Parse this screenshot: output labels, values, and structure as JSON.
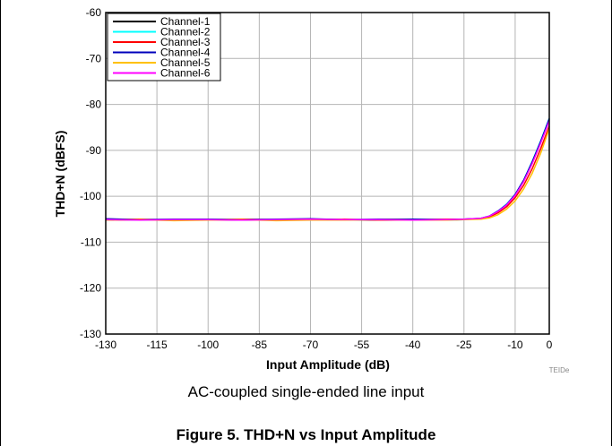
{
  "chart_data": {
    "type": "line",
    "title": "",
    "xlabel": "Input Amplitude (dB)",
    "ylabel": "THD+N (dBFS)",
    "xlim": [
      -130,
      0
    ],
    "ylim": [
      -130,
      -60
    ],
    "x_ticks": [
      "-130",
      "-115",
      "-100",
      "-85",
      "-70",
      "-55",
      "-40",
      "-25",
      "-10",
      "0"
    ],
    "y_ticks": [
      "-60",
      "-70",
      "-80",
      "-90",
      "-100",
      "-110",
      "-120",
      "-130"
    ],
    "grid": true,
    "legend_position": "top-left",
    "series": [
      {
        "name": "Channel-1",
        "color": "#000000",
        "x": [
          -130,
          -120,
          -110,
          -100,
          -90,
          -80,
          -70,
          -60,
          -50,
          -40,
          -30,
          -25,
          -20,
          -17.5,
          -15,
          -12.5,
          -10,
          -7.5,
          -5,
          -2.5,
          0
        ],
        "y": [
          -105.2,
          -105.1,
          -105.2,
          -105.1,
          -105.2,
          -105.1,
          -105.2,
          -105.1,
          -105.2,
          -105.1,
          -105.1,
          -105.0,
          -104.9,
          -104.4,
          -103.3,
          -101.9,
          -99.7,
          -96.6,
          -92.6,
          -88.1,
          -83.3
        ]
      },
      {
        "name": "Channel-2",
        "color": "#00ffff",
        "x": [
          -130,
          -120,
          -110,
          -100,
          -90,
          -80,
          -70,
          -60,
          -50,
          -40,
          -30,
          -25,
          -20,
          -17.5,
          -15,
          -12.5,
          -10,
          -7.5,
          -5,
          -2.5,
          0
        ],
        "y": [
          -105.0,
          -105.2,
          -105.1,
          -105.0,
          -105.1,
          -105.2,
          -105.0,
          -105.1,
          -105.1,
          -105.0,
          -105.2,
          -105.1,
          -104.8,
          -104.3,
          -103.2,
          -101.7,
          -99.6,
          -96.5,
          -92.4,
          -87.9,
          -83.0
        ]
      },
      {
        "name": "Channel-3",
        "color": "#ff0000",
        "x": [
          -130,
          -120,
          -110,
          -100,
          -90,
          -80,
          -70,
          -60,
          -50,
          -40,
          -30,
          -25,
          -20,
          -17.5,
          -15,
          -12.5,
          -10,
          -7.5,
          -5,
          -2.5,
          0
        ],
        "y": [
          -105.1,
          -105.0,
          -105.2,
          -105.1,
          -105.0,
          -105.1,
          -105.1,
          -105.0,
          -105.2,
          -105.1,
          -105.0,
          -105.0,
          -104.9,
          -104.5,
          -103.6,
          -102.3,
          -100.3,
          -97.6,
          -94.0,
          -89.6,
          -84.7
        ]
      },
      {
        "name": "Channel-4",
        "color": "#0000bb",
        "x": [
          -130,
          -120,
          -110,
          -100,
          -90,
          -80,
          -70,
          -60,
          -50,
          -40,
          -30,
          -25,
          -20,
          -17.5,
          -15,
          -12.5,
          -10,
          -7.5,
          -5,
          -2.5,
          0
        ],
        "y": [
          -104.9,
          -105.1,
          -105.0,
          -105.0,
          -105.1,
          -105.0,
          -104.9,
          -105.1,
          -105.0,
          -105.0,
          -105.1,
          -105.0,
          -104.8,
          -104.3,
          -103.2,
          -101.8,
          -99.6,
          -96.5,
          -92.5,
          -88.0,
          -83.1
        ]
      },
      {
        "name": "Channel-5",
        "color": "#ffc000",
        "x": [
          -130,
          -120,
          -110,
          -100,
          -90,
          -80,
          -70,
          -60,
          -50,
          -40,
          -30,
          -25,
          -20,
          -17.5,
          -15,
          -12.5,
          -10,
          -7.5,
          -5,
          -2.5,
          0
        ],
        "y": [
          -105.2,
          -105.1,
          -105.3,
          -105.2,
          -105.1,
          -105.3,
          -105.2,
          -105.2,
          -105.1,
          -105.2,
          -105.2,
          -105.1,
          -105.0,
          -104.7,
          -104.0,
          -102.8,
          -101.0,
          -98.4,
          -95.0,
          -90.6,
          -85.3
        ]
      },
      {
        "name": "Channel-6",
        "color": "#ff00ff",
        "x": [
          -130,
          -120,
          -110,
          -100,
          -90,
          -80,
          -70,
          -60,
          -50,
          -40,
          -30,
          -25,
          -20,
          -17.5,
          -15,
          -12.5,
          -10,
          -7.5,
          -5,
          -2.5,
          0
        ],
        "y": [
          -105.1,
          -105.2,
          -105.1,
          -105.1,
          -105.2,
          -105.1,
          -105.0,
          -105.1,
          -105.1,
          -105.2,
          -105.1,
          -105.0,
          -104.8,
          -104.3,
          -103.3,
          -101.9,
          -99.8,
          -96.8,
          -92.9,
          -88.4,
          -83.6
        ]
      }
    ],
    "figure_id": "TEIDe"
  },
  "caption": "AC-coupled single-ended line input",
  "figure_title": "Figure 5. THD+N vs Input Amplitude"
}
